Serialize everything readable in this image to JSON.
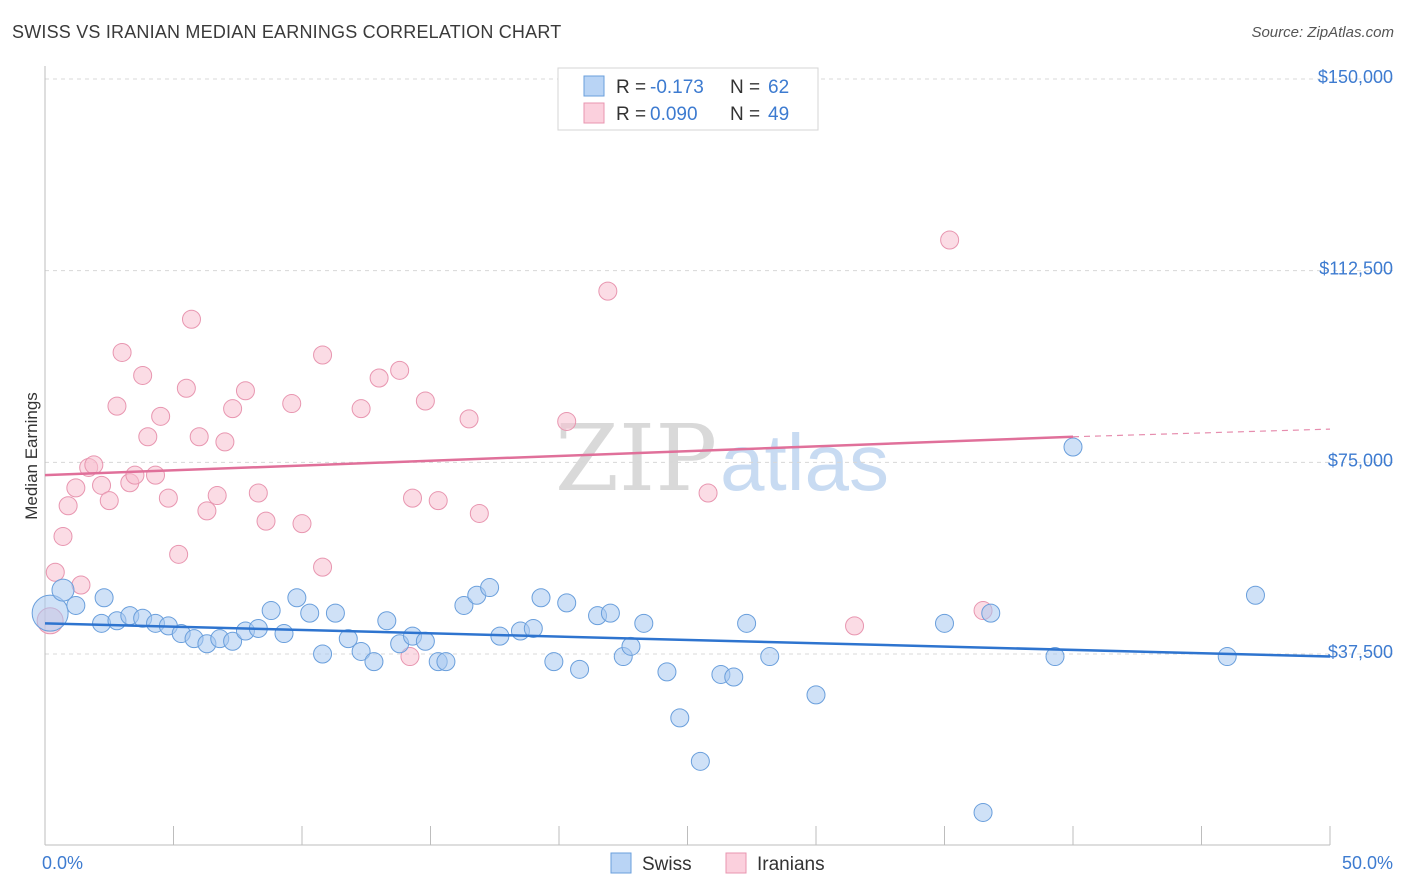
{
  "title": "SWISS VS IRANIAN MEDIAN EARNINGS CORRELATION CHART",
  "source": "Source: ZipAtlas.com",
  "watermark": {
    "zip": "ZIP",
    "atlas": "atlas"
  },
  "colors": {
    "swiss_fill": "#a8c8f0",
    "swiss_stroke": "#6a9fdc",
    "swiss_line": "#2e74cf",
    "iranian_fill": "#f7bfd0",
    "iranian_stroke": "#e896b0",
    "iranian_line": "#e0709a",
    "label_blue": "#3d7bd0",
    "grid": "#d8d8d8"
  },
  "legend": {
    "swiss": {
      "r_label": "R = ",
      "r_value": "-0.173",
      "n_label": "N = ",
      "n_value": "62"
    },
    "iranian": {
      "r_label": "R = ",
      "r_value": "0.090",
      "n_label": "N = ",
      "n_value": "49"
    }
  },
  "chart_data": {
    "type": "scatter",
    "title": "SWISS VS IRANIAN MEDIAN EARNINGS CORRELATION CHART",
    "xlabel": "",
    "ylabel": "Median Earnings",
    "xlim": [
      0,
      50
    ],
    "ylim": [
      0,
      155000
    ],
    "x_tick_labels": [
      "0.0%",
      "50.0%"
    ],
    "y_ticks": [
      37500,
      75000,
      112500,
      150000
    ],
    "y_tick_labels": [
      "$37,500",
      "$75,000",
      "$112,500",
      "$150,000"
    ],
    "grid": true,
    "legend_position": "top-center",
    "series": [
      {
        "name": "Swiss",
        "r": -0.173,
        "n": 62,
        "trend": {
          "x": [
            0,
            50
          ],
          "y": [
            43500,
            37000
          ]
        },
        "points": [
          [
            0.2,
            45500
          ],
          [
            0.7,
            50000
          ],
          [
            1.2,
            47000
          ],
          [
            2.3,
            48500
          ],
          [
            2.2,
            43500
          ],
          [
            2.8,
            44000
          ],
          [
            3.3,
            45000
          ],
          [
            3.8,
            44500
          ],
          [
            4.3,
            43500
          ],
          [
            4.8,
            43000
          ],
          [
            5.3,
            41500
          ],
          [
            5.8,
            40500
          ],
          [
            6.3,
            39500
          ],
          [
            6.8,
            40500
          ],
          [
            7.3,
            40000
          ],
          [
            7.8,
            42000
          ],
          [
            8.3,
            42500
          ],
          [
            8.8,
            46000
          ],
          [
            9.3,
            41500
          ],
          [
            9.8,
            48500
          ],
          [
            10.3,
            45500
          ],
          [
            10.8,
            37500
          ],
          [
            11.3,
            45500
          ],
          [
            11.8,
            40500
          ],
          [
            12.3,
            38000
          ],
          [
            12.8,
            36000
          ],
          [
            13.3,
            44000
          ],
          [
            13.8,
            39500
          ],
          [
            14.3,
            41000
          ],
          [
            14.8,
            40000
          ],
          [
            15.3,
            36000
          ],
          [
            15.6,
            36000
          ],
          [
            16.3,
            47000
          ],
          [
            16.8,
            49000
          ],
          [
            17.3,
            50500
          ],
          [
            17.7,
            41000
          ],
          [
            18.5,
            42000
          ],
          [
            19.0,
            42500
          ],
          [
            19.3,
            48500
          ],
          [
            19.8,
            36000
          ],
          [
            20.3,
            47500
          ],
          [
            20.8,
            34500
          ],
          [
            21.5,
            45000
          ],
          [
            22.0,
            45500
          ],
          [
            22.5,
            37000
          ],
          [
            22.8,
            39000
          ],
          [
            23.3,
            43500
          ],
          [
            24.2,
            34000
          ],
          [
            24.7,
            25000
          ],
          [
            25.5,
            16500
          ],
          [
            26.3,
            33500
          ],
          [
            26.8,
            33000
          ],
          [
            27.3,
            43500
          ],
          [
            28.2,
            37000
          ],
          [
            30.0,
            29500
          ],
          [
            35.0,
            43500
          ],
          [
            36.5,
            6500
          ],
          [
            36.8,
            45500
          ],
          [
            39.3,
            37000
          ],
          [
            40.0,
            78000
          ],
          [
            46.0,
            37000
          ],
          [
            47.1,
            49000
          ]
        ]
      },
      {
        "name": "Iranians",
        "r": 0.09,
        "n": 49,
        "trend": {
          "x": [
            0,
            40
          ],
          "y": [
            72500,
            80000
          ]
        },
        "trend_extension": {
          "x": [
            40,
            50
          ],
          "y": [
            80000,
            81500
          ]
        },
        "points": [
          [
            0.2,
            44000
          ],
          [
            0.4,
            53500
          ],
          [
            0.7,
            60500
          ],
          [
            0.9,
            66500
          ],
          [
            1.2,
            70000
          ],
          [
            1.4,
            51000
          ],
          [
            1.7,
            74000
          ],
          [
            1.9,
            74500
          ],
          [
            2.2,
            70500
          ],
          [
            2.5,
            67500
          ],
          [
            2.8,
            86000
          ],
          [
            3.0,
            96500
          ],
          [
            3.3,
            71000
          ],
          [
            3.5,
            72500
          ],
          [
            3.8,
            92000
          ],
          [
            4.0,
            80000
          ],
          [
            4.3,
            72500
          ],
          [
            4.5,
            84000
          ],
          [
            4.8,
            68000
          ],
          [
            5.2,
            57000
          ],
          [
            5.5,
            89500
          ],
          [
            5.7,
            103000
          ],
          [
            6.0,
            80000
          ],
          [
            6.3,
            65500
          ],
          [
            6.7,
            68500
          ],
          [
            7.0,
            79000
          ],
          [
            7.3,
            85500
          ],
          [
            7.8,
            89000
          ],
          [
            8.3,
            69000
          ],
          [
            8.6,
            63500
          ],
          [
            9.6,
            86500
          ],
          [
            10.0,
            63000
          ],
          [
            10.8,
            54500
          ],
          [
            10.8,
            96000
          ],
          [
            12.3,
            85500
          ],
          [
            13.0,
            91500
          ],
          [
            13.8,
            93000
          ],
          [
            14.2,
            37000
          ],
          [
            14.3,
            68000
          ],
          [
            14.8,
            87000
          ],
          [
            15.3,
            67500
          ],
          [
            16.5,
            83500
          ],
          [
            16.9,
            65000
          ],
          [
            20.3,
            83000
          ],
          [
            21.9,
            108500
          ],
          [
            25.8,
            69000
          ],
          [
            31.5,
            43000
          ],
          [
            35.2,
            118500
          ],
          [
            36.5,
            46000
          ]
        ]
      }
    ]
  },
  "bottom_legend": {
    "swiss": "Swiss",
    "iranian": "Iranians"
  }
}
